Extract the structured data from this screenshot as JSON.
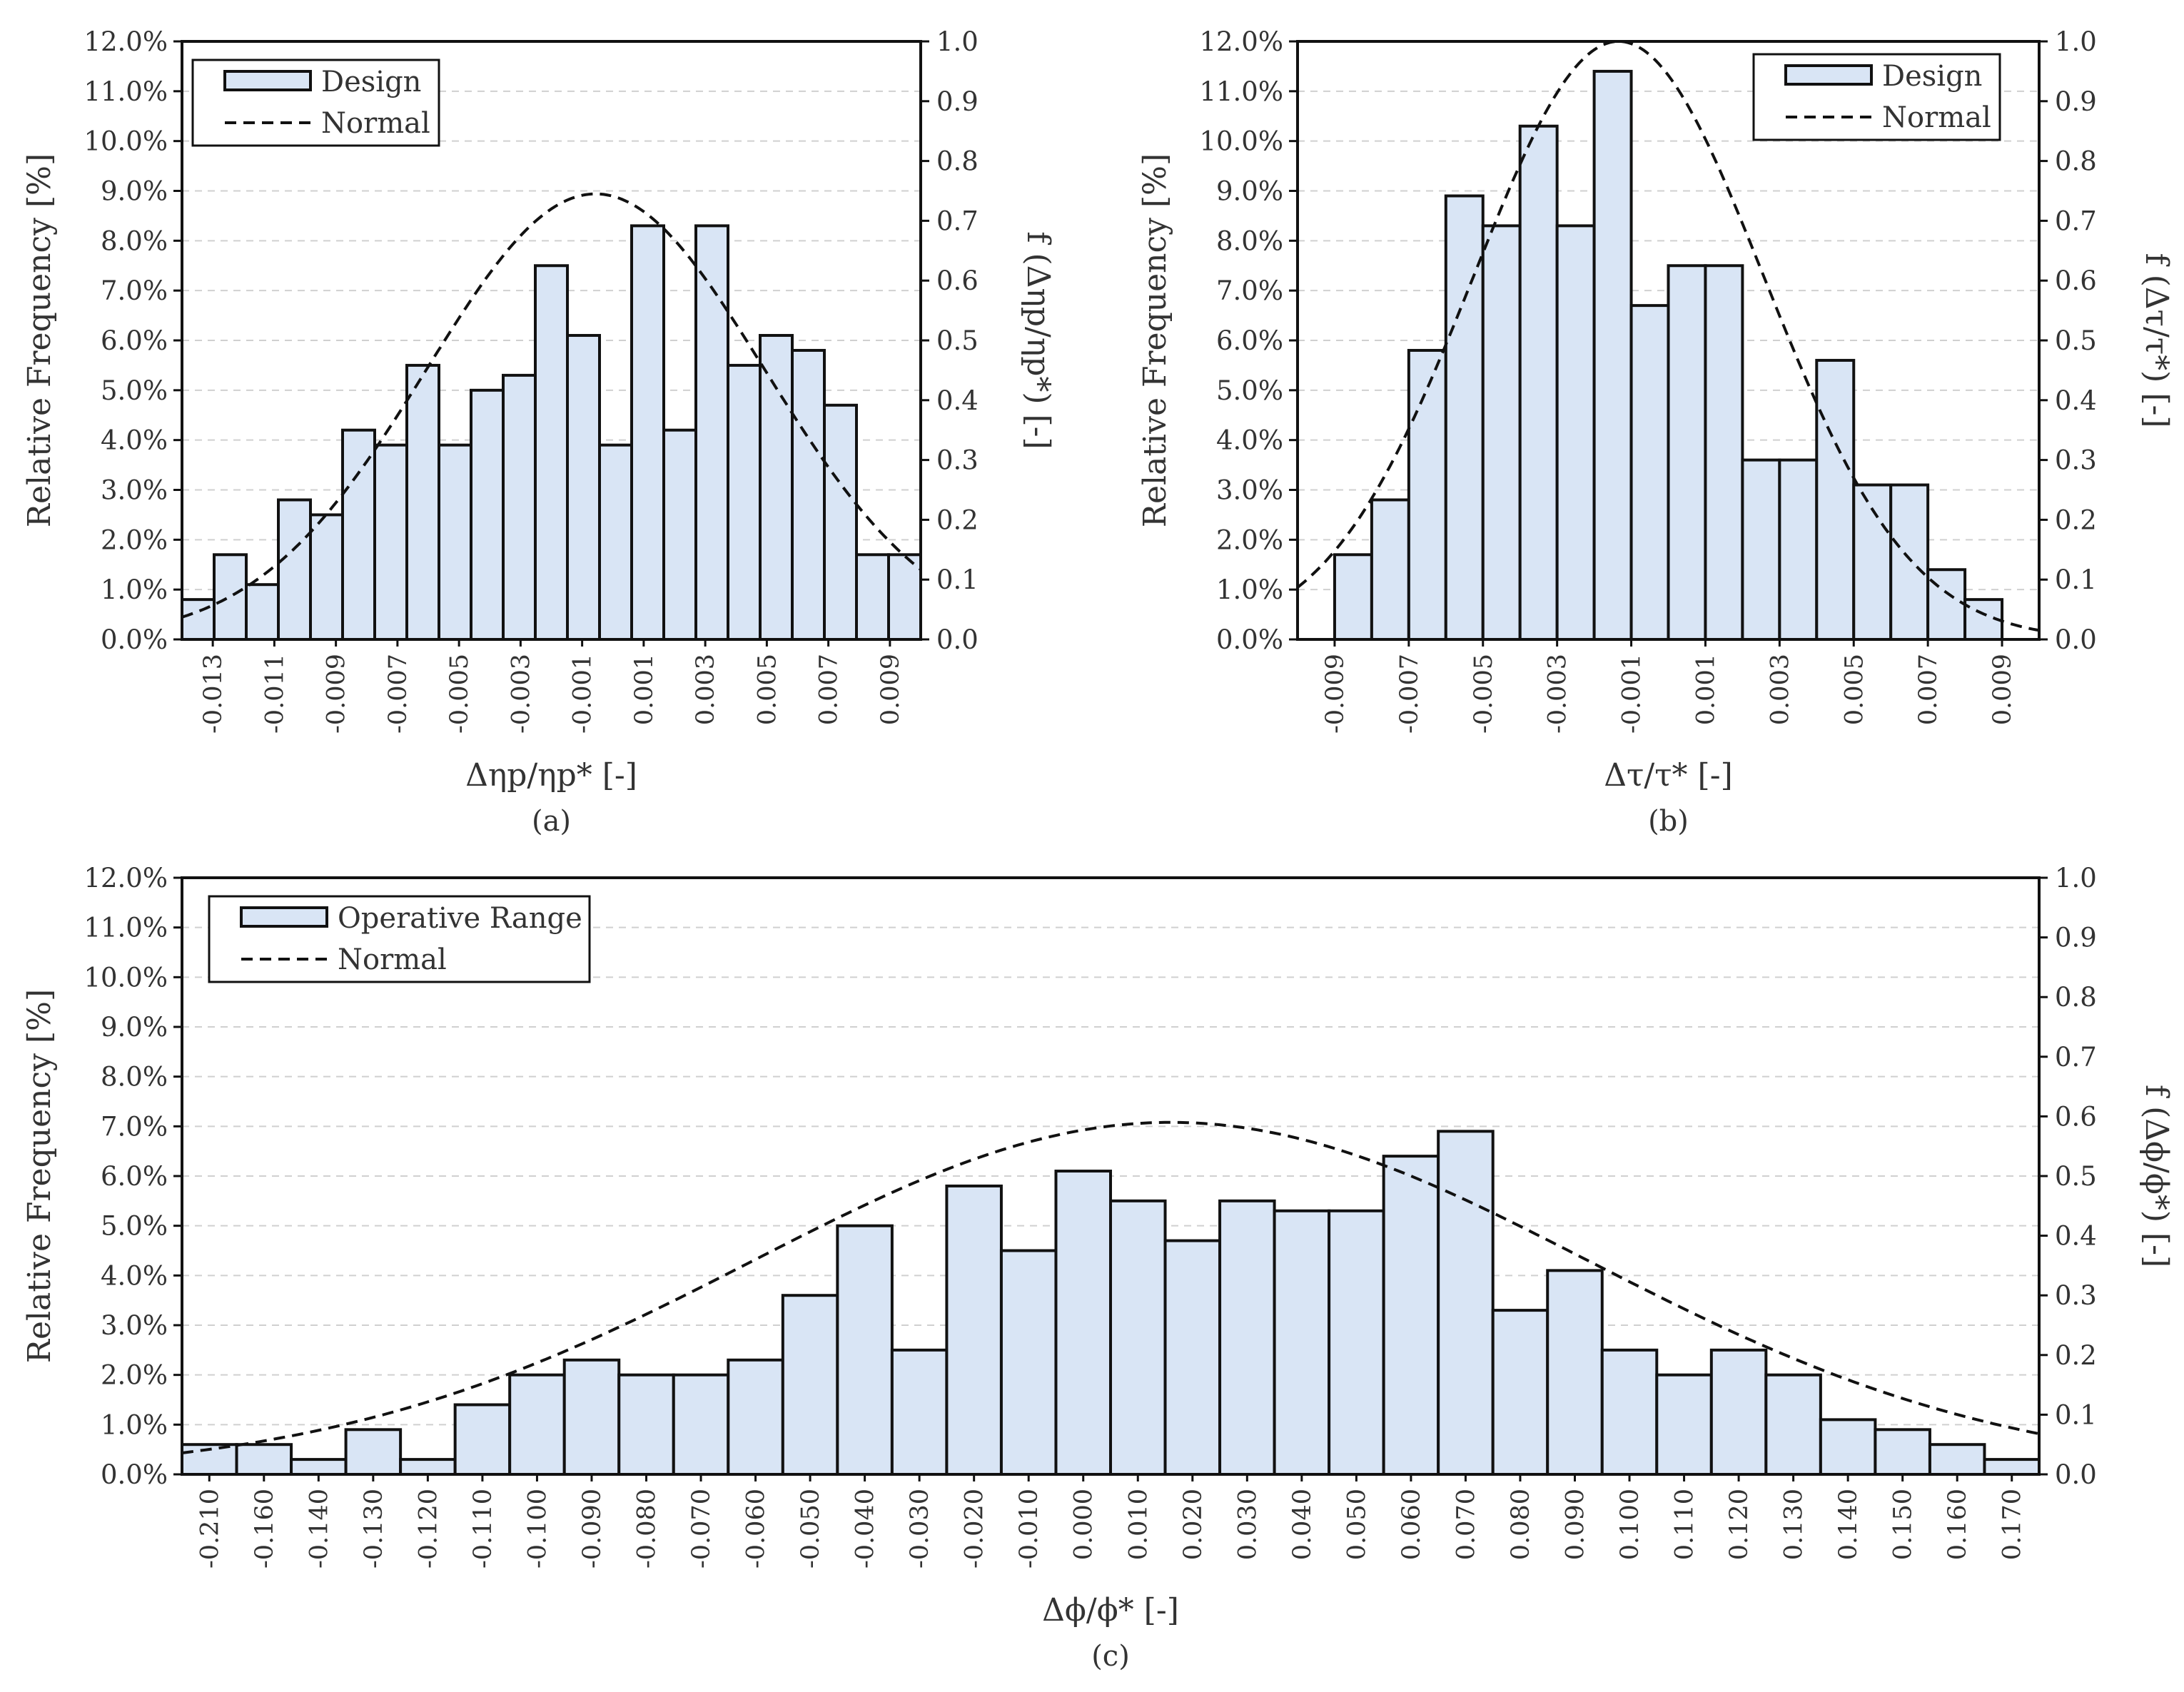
{
  "figure": {
    "colors": {
      "bar_fill": "#d9e5f5",
      "bar_stroke": "#111111",
      "curve": "#111111",
      "grid": "#d0d0d0",
      "axis": "#111111",
      "text": "#333333"
    }
  },
  "chart_data": [
    {
      "id": "a",
      "type": "bar",
      "caption": "(a)",
      "xlabel": "Δηp/ηp* [-]",
      "ylabel": "Relative Frequency [%]",
      "y2label": "f (Δηp/ηp*) [-]",
      "ylim": [
        0,
        12
      ],
      "y2lim": [
        0,
        1.0
      ],
      "grid": true,
      "legend_position": "top-left",
      "y_ticks": [
        "0.0%",
        "1.0%",
        "2.0%",
        "3.0%",
        "4.0%",
        "5.0%",
        "6.0%",
        "7.0%",
        "8.0%",
        "9.0%",
        "10.0%",
        "11.0%",
        "12.0%"
      ],
      "y2_ticks": [
        "0.0",
        "0.1",
        "0.2",
        "0.3",
        "0.4",
        "0.5",
        "0.6",
        "0.7",
        "0.8",
        "0.9",
        "1.0"
      ],
      "x_ticks": [
        "-0.013",
        "-0.011",
        "-0.009",
        "-0.007",
        "-0.005",
        "-0.003",
        "-0.001",
        "0.001",
        "0.003",
        "0.005",
        "0.007",
        "0.009"
      ],
      "series": [
        {
          "name": "Design",
          "kind": "bar",
          "values": [
            0.8,
            1.7,
            1.1,
            2.8,
            2.5,
            4.2,
            3.9,
            5.5,
            3.9,
            5.0,
            5.3,
            7.5,
            6.1,
            3.9,
            8.3,
            4.2,
            8.3,
            5.5,
            6.1,
            5.8,
            4.7,
            1.7,
            1.7
          ]
        },
        {
          "name": "Normal",
          "kind": "curve",
          "mean": -0.0006,
          "sd": 0.00535,
          "peak": 0.745
        }
      ]
    },
    {
      "id": "b",
      "type": "bar",
      "caption": "(b)",
      "xlabel": "Δτ/τ* [-]",
      "ylabel": "Relative Frequency [%]",
      "y2label": "f (Δτ/τ*) [-]",
      "ylim": [
        0,
        12
      ],
      "y2lim": [
        0,
        1.0
      ],
      "grid": true,
      "legend_position": "top-right",
      "y_ticks": [
        "0.0%",
        "1.0%",
        "2.0%",
        "3.0%",
        "4.0%",
        "5.0%",
        "6.0%",
        "7.0%",
        "8.0%",
        "9.0%",
        "10.0%",
        "11.0%",
        "12.0%"
      ],
      "y2_ticks": [
        "0.0",
        "0.1",
        "0.2",
        "0.3",
        "0.4",
        "0.5",
        "0.6",
        "0.7",
        "0.8",
        "0.9",
        "1.0"
      ],
      "x_ticks": [
        "-0.009",
        "-0.007",
        "-0.005",
        "-0.003",
        "-0.001",
        "0.001",
        "0.003",
        "0.005",
        "0.007",
        "0.009"
      ],
      "series": [
        {
          "name": "Design",
          "kind": "bar",
          "values": [
            0.0,
            1.7,
            2.8,
            5.8,
            8.9,
            8.3,
            10.3,
            8.3,
            11.4,
            6.7,
            7.5,
            7.5,
            3.6,
            3.6,
            5.6,
            3.1,
            3.1,
            1.4,
            0.8,
            0.0
          ]
        },
        {
          "name": "Normal",
          "kind": "curve",
          "mean": -0.0013,
          "sd": 0.0038,
          "peak": 1.0
        }
      ]
    },
    {
      "id": "c",
      "type": "bar",
      "caption": "(c)",
      "xlabel": "Δϕ/ϕ* [-]",
      "ylabel": "Relative Frequency [%]",
      "y2label": "f (Δϕ/ϕ*) [-]",
      "ylim": [
        0,
        12
      ],
      "y2lim": [
        0,
        1.0
      ],
      "grid": true,
      "legend_position": "top-left",
      "y_ticks": [
        "0.0%",
        "1.0%",
        "2.0%",
        "3.0%",
        "4.0%",
        "5.0%",
        "6.0%",
        "7.0%",
        "8.0%",
        "9.0%",
        "10.0%",
        "11.0%",
        "12.0%"
      ],
      "y2_ticks": [
        "0.0",
        "0.1",
        "0.2",
        "0.3",
        "0.4",
        "0.5",
        "0.6",
        "0.7",
        "0.8",
        "0.9",
        "1.0"
      ],
      "x_ticks": [
        "-0.210",
        "-0.160",
        "-0.140",
        "-0.130",
        "-0.120",
        "-0.110",
        "-0.100",
        "-0.090",
        "-0.080",
        "-0.070",
        "-0.060",
        "-0.050",
        "-0.040",
        "-0.030",
        "-0.020",
        "-0.010",
        "0.000",
        "0.010",
        "0.020",
        "0.030",
        "0.040",
        "0.050",
        "0.060",
        "0.070",
        "0.080",
        "0.090",
        "0.100",
        "0.110",
        "0.120",
        "0.130",
        "0.140",
        "0.150",
        "0.160",
        "0.170"
      ],
      "series": [
        {
          "name": "Operative Range",
          "kind": "bar",
          "values": [
            0.6,
            0.6,
            0.3,
            0.9,
            0.3,
            1.4,
            2.0,
            2.3,
            2.0,
            2.0,
            2.3,
            3.6,
            5.0,
            2.5,
            5.8,
            4.5,
            6.1,
            5.5,
            4.7,
            5.5,
            5.3,
            5.3,
            6.4,
            6.9,
            3.3,
            4.1,
            2.5,
            2.0,
            2.5,
            2.0,
            1.1,
            0.9,
            0.6,
            0.3
          ]
        },
        {
          "name": "Normal",
          "kind": "curve",
          "mean_index": 18.1,
          "sd_index": 7.65,
          "peak": 0.59
        }
      ]
    }
  ]
}
